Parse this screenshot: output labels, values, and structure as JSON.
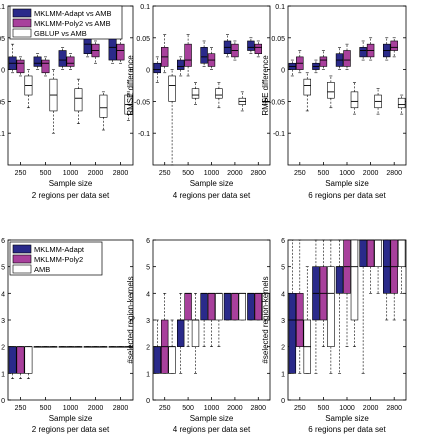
{
  "colors": {
    "adapt": "#2a2a8a",
    "poly2": "#a8409c",
    "third": "#ffffff",
    "median": "#000000"
  },
  "chart_data": [
    {
      "type": "box",
      "xlabel": "Sample size",
      "ylabel": "RMSE difference",
      "caption": "2 regions per data set",
      "categories": [
        "250",
        "500",
        "1000",
        "2000",
        "2800"
      ],
      "ylim": [
        -0.15,
        0.1
      ],
      "yticks": [
        "-0.1",
        "-0.05",
        "0",
        "0.05",
        "0.1"
      ],
      "legend": [
        "MKLMM-Adapt vs AMB",
        "MKLMM-Poly2 vs AMB",
        "GBLUP vs AMB"
      ],
      "series": [
        {
          "name": "MKLMM-Adapt vs AMB",
          "boxes": [
            [
              -0.005,
              0,
              0.01,
              0.02,
              0.04
            ],
            [
              0.0,
              0.005,
              0.01,
              0.02,
              0.025
            ],
            [
              0.0,
              0.005,
              0.015,
              0.03,
              0.035
            ],
            [
              0.02,
              0.025,
              0.04,
              0.06,
              0.075
            ],
            [
              0.01,
              0.015,
              0.035,
              0.05,
              0.06
            ]
          ]
        },
        {
          "name": "MKLMM-Poly2 vs AMB",
          "boxes": [
            [
              -0.01,
              -0.005,
              0.01,
              0.015,
              0.02
            ],
            [
              -0.01,
              -0.005,
              0.01,
              0.015,
              0.02
            ],
            [
              0.0,
              0.005,
              0.01,
              0.02,
              0.025
            ],
            [
              0.01,
              0.02,
              0.03,
              0.04,
              0.045
            ],
            [
              0.01,
              0.015,
              0.03,
              0.04,
              0.05
            ]
          ]
        },
        {
          "name": "GBLUP vs AMB",
          "boxes": [
            [
              -0.06,
              -0.04,
              -0.025,
              -0.01,
              0.0
            ],
            [
              -0.1,
              -0.065,
              -0.04,
              -0.015,
              0.0
            ],
            [
              -0.085,
              -0.065,
              -0.045,
              -0.03,
              -0.015
            ],
            [
              -0.095,
              -0.075,
              -0.06,
              -0.04,
              -0.035
            ],
            [
              -0.08,
              -0.07,
              -0.055,
              -0.04,
              -0.035
            ]
          ]
        }
      ]
    },
    {
      "type": "box",
      "xlabel": "Sample size",
      "ylabel": "RMSE difference",
      "caption": "4 regions per data set",
      "categories": [
        "250",
        "500",
        "1000",
        "2000",
        "2800"
      ],
      "ylim": [
        -0.15,
        0.1
      ],
      "yticks": [
        "-0.1",
        "-0.05",
        "0",
        "0.05",
        "0.1"
      ],
      "series": [
        {
          "name": "MKLMM-Adapt vs AMB",
          "boxes": [
            [
              -0.02,
              -0.005,
              0.0,
              0.01,
              0.02
            ],
            [
              -0.01,
              0.0,
              0.005,
              0.015,
              0.02
            ],
            [
              0.005,
              0.01,
              0.02,
              0.035,
              0.045
            ],
            [
              0.02,
              0.025,
              0.035,
              0.045,
              0.055
            ],
            [
              0.025,
              0.03,
              0.035,
              0.045,
              0.05
            ]
          ]
        },
        {
          "name": "MKLMM-Poly2 vs AMB",
          "boxes": [
            [
              -0.005,
              0.005,
              0.02,
              0.035,
              0.055
            ],
            [
              -0.01,
              0.005,
              0.015,
              0.04,
              0.055
            ],
            [
              0.0,
              0.005,
              0.015,
              0.025,
              0.035
            ],
            [
              0.015,
              0.02,
              0.03,
              0.04,
              0.045
            ],
            [
              0.02,
              0.025,
              0.035,
              0.04,
              0.045
            ]
          ]
        },
        {
          "name": "GBLUP vs AMB",
          "boxes": [
            [
              -0.15,
              -0.05,
              -0.025,
              -0.01,
              0.0
            ],
            [
              -0.055,
              -0.045,
              -0.04,
              -0.03,
              -0.02
            ],
            [
              -0.06,
              -0.045,
              -0.04,
              -0.03,
              -0.02
            ],
            [
              -0.065,
              -0.055,
              -0.05,
              -0.045,
              -0.035
            ],
            [
              -0.055,
              -0.05,
              -0.05,
              -0.05,
              -0.045
            ]
          ]
        }
      ]
    },
    {
      "type": "box",
      "xlabel": "Sample size",
      "ylabel": "RMSE difference",
      "caption": "6 regions per data set",
      "categories": [
        "250",
        "500",
        "1000",
        "2000",
        "2800"
      ],
      "ylim": [
        -0.15,
        0.1
      ],
      "yticks": [
        "-0.1",
        "-0.05",
        "0",
        "0.05",
        "0.1"
      ],
      "series": [
        {
          "name": "MKLMM-Adapt vs AMB",
          "boxes": [
            [
              -0.01,
              0.0,
              0.005,
              0.01,
              0.015
            ],
            [
              -0.005,
              0.0,
              0.005,
              0.01,
              0.015
            ],
            [
              0.0,
              0.005,
              0.015,
              0.025,
              0.035
            ],
            [
              0.015,
              0.02,
              0.03,
              0.035,
              0.045
            ],
            [
              0.015,
              0.02,
              0.03,
              0.04,
              0.05
            ]
          ]
        },
        {
          "name": "MKLMM-Poly2 vs AMB",
          "boxes": [
            [
              -0.005,
              0.0,
              0.01,
              0.02,
              0.03
            ],
            [
              0.0,
              0.005,
              0.015,
              0.02,
              0.03
            ],
            [
              0.0,
              0.005,
              0.015,
              0.03,
              0.04
            ],
            [
              0.015,
              0.02,
              0.03,
              0.04,
              0.05
            ],
            [
              0.02,
              0.03,
              0.035,
              0.045,
              0.05
            ]
          ]
        },
        {
          "name": "GBLUP vs AMB",
          "boxes": [
            [
              -0.065,
              -0.04,
              -0.025,
              -0.015,
              -0.005
            ],
            [
              -0.06,
              -0.045,
              -0.035,
              -0.02,
              -0.01
            ],
            [
              -0.07,
              -0.06,
              -0.05,
              -0.035,
              -0.02
            ],
            [
              -0.07,
              -0.06,
              -0.05,
              -0.04,
              -0.03
            ],
            [
              -0.07,
              -0.06,
              -0.055,
              -0.045,
              -0.04
            ]
          ]
        }
      ]
    },
    {
      "type": "box",
      "xlabel": "Sample size",
      "ylabel": "#selected region-kernels",
      "caption": "2 regions per data set",
      "categories": [
        "250",
        "500",
        "1000",
        "2000",
        "2800"
      ],
      "ylim": [
        0,
        6
      ],
      "yticks": [
        "0",
        "1",
        "2",
        "3",
        "4",
        "5",
        "6"
      ],
      "legend": [
        "MKLMM-Adapt",
        "MKLMM-Poly2",
        "AMB"
      ],
      "series": [
        {
          "name": "MKLMM-Adapt",
          "boxes": [
            [
              0.8,
              1.0,
              2.0,
              2.0,
              2.0
            ],
            [
              2,
              2,
              2,
              2,
              2
            ],
            [
              2,
              2,
              2,
              2,
              2
            ],
            [
              2,
              2,
              2,
              2,
              2
            ],
            [
              2,
              2,
              2,
              2,
              2
            ]
          ]
        },
        {
          "name": "MKLMM-Poly2",
          "boxes": [
            [
              0.8,
              1.0,
              2.0,
              2.0,
              2.0
            ],
            [
              2,
              2,
              2,
              2,
              2
            ],
            [
              2,
              2,
              2,
              2,
              2
            ],
            [
              2,
              2,
              2,
              2,
              2
            ],
            [
              2,
              2,
              2,
              2,
              2
            ]
          ]
        },
        {
          "name": "AMB",
          "boxes": [
            [
              0.8,
              1.0,
              2.0,
              2.0,
              2.0
            ],
            [
              2,
              2,
              2,
              2,
              2
            ],
            [
              2,
              2,
              2,
              2,
              2
            ],
            [
              2,
              2,
              2,
              2,
              2
            ],
            [
              2,
              2,
              2,
              2,
              2
            ]
          ]
        }
      ]
    },
    {
      "type": "box",
      "xlabel": "Sample size",
      "ylabel": "#selected region-kernels",
      "caption": "4 regions per data set",
      "categories": [
        "250",
        "500",
        "1000",
        "2000",
        "2800"
      ],
      "ylim": [
        0,
        6
      ],
      "yticks": [
        "0",
        "1",
        "2",
        "3",
        "4",
        "5",
        "6"
      ],
      "series": [
        {
          "name": "MKLMM-Adapt",
          "boxes": [
            [
              1,
              1,
              2,
              2,
              3
            ],
            [
              1,
              2,
              3,
              3,
              4
            ],
            [
              2,
              3,
              4,
              4,
              4
            ],
            [
              3,
              3,
              4,
              4,
              4
            ],
            [
              3,
              3,
              4,
              4,
              4
            ]
          ]
        },
        {
          "name": "MKLMM-Poly2",
          "boxes": [
            [
              1,
              1,
              2,
              3,
              4
            ],
            [
              2,
              3,
              4,
              4,
              4
            ],
            [
              2,
              3,
              4,
              4,
              4
            ],
            [
              3,
              3,
              4,
              4,
              4
            ],
            [
              3,
              3,
              4,
              4,
              4
            ]
          ]
        },
        {
          "name": "AMB",
          "boxes": [
            [
              1,
              1,
              2,
              2,
              3
            ],
            [
              1,
              2,
              3,
              3,
              4
            ],
            [
              2,
              3,
              4,
              4,
              4
            ],
            [
              3,
              3,
              4,
              4,
              4
            ],
            [
              3,
              3,
              4,
              4,
              4
            ]
          ]
        }
      ]
    },
    {
      "type": "box",
      "xlabel": "Sample size",
      "ylabel": "#selected region-kernels",
      "caption": "6 regions per data set",
      "categories": [
        "250",
        "500",
        "1000",
        "2000",
        "2800"
      ],
      "ylim": [
        0,
        6
      ],
      "yticks": [
        "0",
        "1",
        "2",
        "3",
        "4",
        "5",
        "6"
      ],
      "series": [
        {
          "name": "MKLMM-Adapt",
          "boxes": [
            [
              1,
              1,
              3,
              4,
              6
            ],
            [
              1,
              3,
              4,
              5,
              6
            ],
            [
              1,
              4,
              5,
              5,
              6
            ],
            [
              1,
              5,
              6,
              6,
              6
            ],
            [
              3,
              4,
              5,
              6,
              6
            ]
          ]
        },
        {
          "name": "MKLMM-Poly2",
          "boxes": [
            [
              1,
              2,
              3,
              4,
              6
            ],
            [
              2,
              3,
              4,
              5,
              6
            ],
            [
              2,
              4,
              5,
              6,
              6
            ],
            [
              4,
              5,
              6,
              6,
              6
            ],
            [
              3,
              4,
              5,
              6,
              6
            ]
          ]
        },
        {
          "name": "AMB",
          "boxes": [
            [
              1,
              1,
              2,
              3,
              5
            ],
            [
              1,
              2,
              4,
              5,
              6
            ],
            [
              2,
              3,
              5,
              6,
              6
            ],
            [
              4,
              5,
              6,
              6,
              6
            ],
            [
              4,
              5,
              6,
              6,
              6
            ]
          ]
        }
      ]
    }
  ]
}
